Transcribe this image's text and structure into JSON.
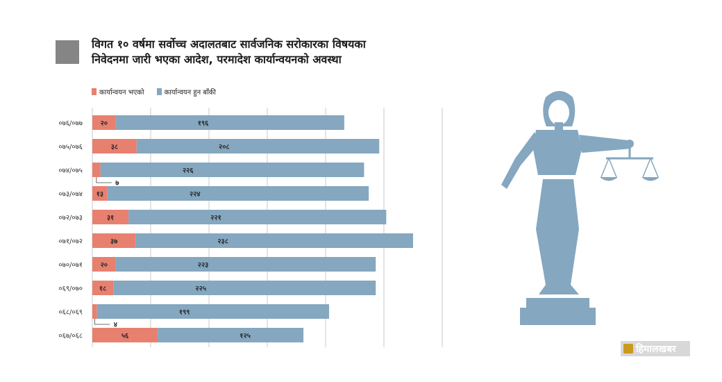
{
  "header": {
    "title_line1": "विगत १० वर्षमा सर्वोच्च अदालतबाट सार्वजनिक सरोकारका विषयका",
    "title_line2": "निवेदनमा जारी भएका आदेश, परमादेश कार्यान्वयनको अवस्था"
  },
  "colors": {
    "implemented": "#e8806f",
    "pending": "#85a7c0",
    "axis": "#c8c8c8",
    "figure": "#85a7c0"
  },
  "chart_data": {
    "type": "bar",
    "orientation": "horizontal",
    "stacked": true,
    "categories": [
      "०७६/०७७",
      "०७५/०७६",
      "०७४/०७५",
      "०७३/०७४",
      "०७२/०७३",
      "०७१/०७२",
      "०७०/०७१",
      "०६९/०७०",
      "०६८/०६९",
      "०६७/०६८"
    ],
    "series": [
      {
        "name": "कार्यान्वयन भएको",
        "values": [
          20,
          38,
          7,
          13,
          31,
          37,
          20,
          18,
          4,
          56
        ],
        "labels": [
          "२०",
          "३८",
          "७",
          "१३",
          "३१",
          "३७",
          "२०",
          "१८",
          "४",
          "५६"
        ]
      },
      {
        "name": "कार्यान्वयन हुन बाँकी",
        "values": [
          196,
          208,
          226,
          224,
          221,
          238,
          223,
          225,
          199,
          125
        ],
        "labels": [
          "१९६",
          "२०८",
          "२२६",
          "२२४",
          "२२१",
          "२३८",
          "२२३",
          "२२५",
          "१९९",
          "१२५"
        ]
      }
    ],
    "xlim": [
      0,
      300
    ],
    "grid": true,
    "legend_position": "top-left",
    "title": "विगत १० वर्षमा सर्वोच्च अदालतबाट सार्वजनिक सरोकारका विषयका निवेदनमा जारी भएका आदेश, परमादेश कार्यान्वयनको अवस्था"
  },
  "branding": {
    "logo_text": "हिमालखबर"
  }
}
